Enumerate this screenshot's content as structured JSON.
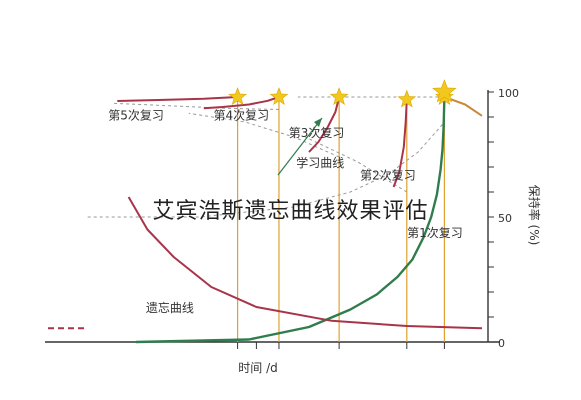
{
  "overlay_caption": "艾宾浩斯遗忘曲线效果评估",
  "colors": {
    "learning": "#c9893a",
    "forgetting_main": "#2f7d4c",
    "forgetting_other": "#a8344a",
    "review_line": "#e0a030",
    "dashed": "#999999",
    "star": "#f2c81e",
    "axis": "#333333"
  },
  "chart_data": {
    "type": "line",
    "mirrored": true,
    "xlabel": "时间 /d",
    "ylabel": "保持率 (%)",
    "ylim": [
      0,
      100
    ],
    "y_ticks": [
      {
        "value": 0,
        "label": "0"
      },
      {
        "value": 50,
        "label": "50"
      },
      {
        "value": 100,
        "label": "100"
      }
    ],
    "review_times": [
      1.0,
      2.0,
      3.8,
      5.4,
      6.5
    ],
    "review_times_ticks_only": [
      6.0
    ],
    "series": [
      {
        "role": "learning",
        "points": [
          [
            0,
            90.5
          ],
          [
            0.45,
            95
          ],
          [
            0.9,
            97.5
          ],
          [
            1.0,
            98
          ]
        ]
      },
      {
        "role": "forgetting",
        "points": [
          [
            1.0,
            98
          ],
          [
            1.02,
            86
          ],
          [
            1.05,
            77
          ],
          [
            1.1,
            69
          ],
          [
            1.2,
            59
          ],
          [
            1.35,
            50
          ],
          [
            1.55,
            42
          ],
          [
            1.85,
            33
          ],
          [
            2.25,
            26
          ],
          [
            2.8,
            19
          ],
          [
            3.5,
            13
          ],
          [
            4.6,
            6
          ],
          [
            6.2,
            1
          ],
          [
            9.2,
            0
          ]
        ]
      },
      {
        "role": "forgetting",
        "points": [
          [
            2.0,
            97
          ],
          [
            2.03,
            88
          ],
          [
            2.08,
            78
          ],
          [
            2.2,
            68
          ],
          [
            2.35,
            62
          ]
        ]
      },
      {
        "role": "forgetting",
        "points": [
          [
            3.8,
            98
          ],
          [
            3.9,
            92
          ],
          [
            4.1,
            86
          ],
          [
            4.35,
            80
          ],
          [
            4.6,
            76
          ]
        ]
      },
      {
        "role": "forgetting",
        "points": [
          [
            5.4,
            98
          ],
          [
            5.7,
            96.5
          ],
          [
            6.2,
            95
          ],
          [
            6.9,
            94
          ],
          [
            7.4,
            93.5
          ]
        ]
      },
      {
        "role": "forgetting",
        "points": [
          [
            6.5,
            98
          ],
          [
            7.4,
            97.3
          ],
          [
            8.6,
            96.8
          ],
          [
            9.7,
            96.4
          ]
        ]
      },
      {
        "role": "forgetting",
        "points": [
          [
            0,
            5.5
          ],
          [
            2,
            6.4
          ],
          [
            4,
            8.5
          ],
          [
            6,
            14
          ],
          [
            7.2,
            22
          ],
          [
            8.2,
            34
          ],
          [
            8.9,
            45
          ],
          [
            9.4,
            58
          ]
        ]
      }
    ],
    "review_markers": [
      [
        1.0,
        98
      ],
      [
        2.0,
        97
      ],
      [
        3.8,
        98
      ],
      [
        5.4,
        98
      ],
      [
        6.5,
        98
      ]
    ],
    "dashed_guides": [
      [
        [
          1.0,
          98
        ],
        [
          4.9,
          98
        ]
      ],
      [
        [
          2.0,
          60
        ],
        [
          3.3,
          72
        ],
        [
          4.7,
          82
        ]
      ],
      [
        [
          3.8,
          74
        ],
        [
          5.0,
          82
        ],
        [
          6.3,
          88
        ],
        [
          7.8,
          91.5
        ]
      ],
      [
        [
          5.4,
          93
        ],
        [
          6.8,
          93.5
        ],
        [
          8.3,
          94.5
        ],
        [
          9.8,
          95.5
        ]
      ],
      [
        [
          1.05,
          87
        ],
        [
          1.7,
          76
        ],
        [
          2.5,
          67
        ],
        [
          3.5,
          60
        ],
        [
          5,
          54
        ],
        [
          7.5,
          50
        ],
        [
          10.5,
          50
        ]
      ]
    ],
    "annotations": [
      {
        "text": "第1次复习",
        "x": 1.25,
        "y": 42
      },
      {
        "text": "第2次复习",
        "x": 2.5,
        "y": 65
      },
      {
        "text": "第3次复习",
        "x": 4.4,
        "y": 82
      },
      {
        "text": "第4次复习",
        "x": 6.4,
        "y": 89
      },
      {
        "text": "第5次复习",
        "x": 9.2,
        "y": 89
      },
      {
        "text": "学习曲线",
        "x": 4.3,
        "y": 70
      },
      {
        "text": "遗忘曲线",
        "x": 8.3,
        "y": 12
      }
    ]
  }
}
